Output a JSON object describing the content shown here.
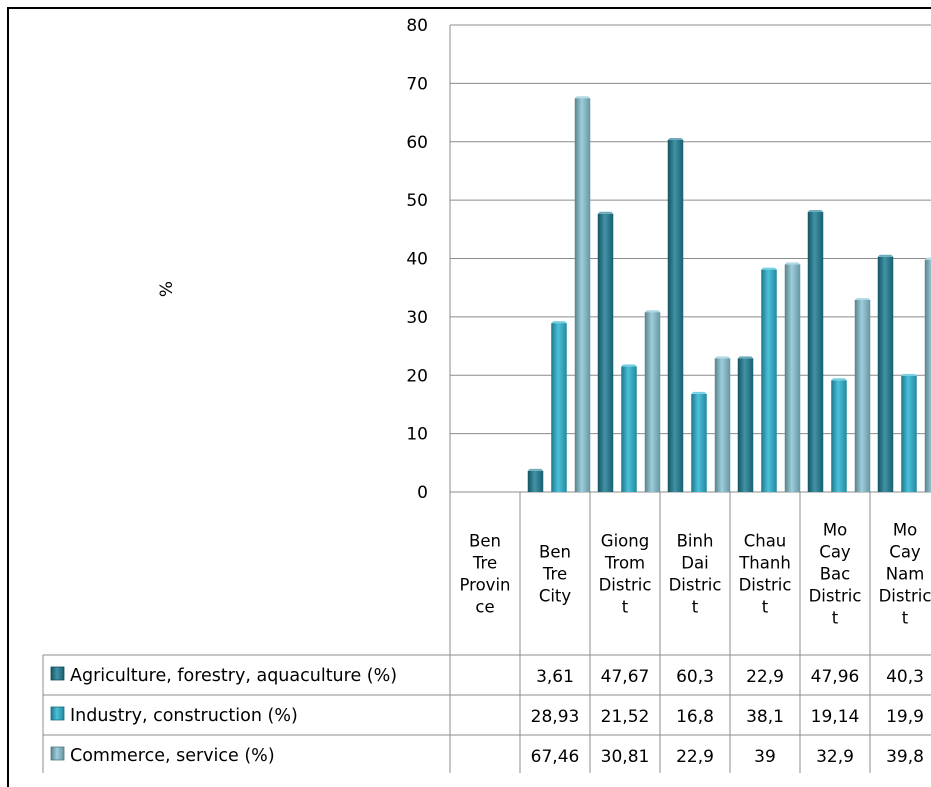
{
  "chart_data": {
    "type": "bar",
    "ylabel": "%",
    "ylim": [
      0,
      80
    ],
    "yticks": [
      "0",
      "10",
      "20",
      "30",
      "40",
      "50",
      "60",
      "70",
      "80"
    ],
    "categories": [
      "Ben Tre Province",
      "Ben Tre City",
      "Giong Trom District",
      "Binh Dai District",
      "Chau Thanh District",
      "Mo Cay Bac District",
      "Mo Cay Nam District"
    ],
    "category_lines": [
      [
        "Ben",
        "Tre",
        "Provin",
        "ce"
      ],
      [
        "Ben",
        "Tre",
        "City"
      ],
      [
        "Giong",
        "Trom",
        "Distric",
        "t"
      ],
      [
        "Binh",
        "Dai",
        "Distric",
        "t"
      ],
      [
        "Chau",
        "Thanh",
        "Distric",
        "t"
      ],
      [
        "Mo",
        "Cay",
        "Bac",
        "Distric",
        "t"
      ],
      [
        "Mo",
        "Cay",
        "Nam",
        "Distric",
        "t"
      ]
    ],
    "series": [
      {
        "name": "Agriculture, forestry, aquaculture (%)",
        "color": "#1f7f95",
        "values": [
          null,
          3.61,
          47.67,
          60.3,
          22.9,
          47.96,
          40.3
        ],
        "labels": [
          "",
          "3,61",
          "47,67",
          "60,3",
          "22,9",
          "47,96",
          "40,3"
        ]
      },
      {
        "name": "Industry, construction (%)",
        "color": "#2db6d4",
        "values": [
          null,
          28.93,
          21.52,
          16.8,
          38.1,
          19.14,
          19.9
        ],
        "labels": [
          "",
          "28,93",
          "21,52",
          "16,8",
          "38,1",
          "19,14",
          "19,9"
        ]
      },
      {
        "name": "Commerce, service (%)",
        "color": "#8ac5d6",
        "values": [
          null,
          67.46,
          30.81,
          22.9,
          39,
          32.9,
          39.8
        ],
        "labels": [
          "",
          "67,46",
          "30,81",
          "22,9",
          "39",
          "32,9",
          "39,8"
        ]
      }
    ],
    "grid": true,
    "legend": "data table"
  }
}
